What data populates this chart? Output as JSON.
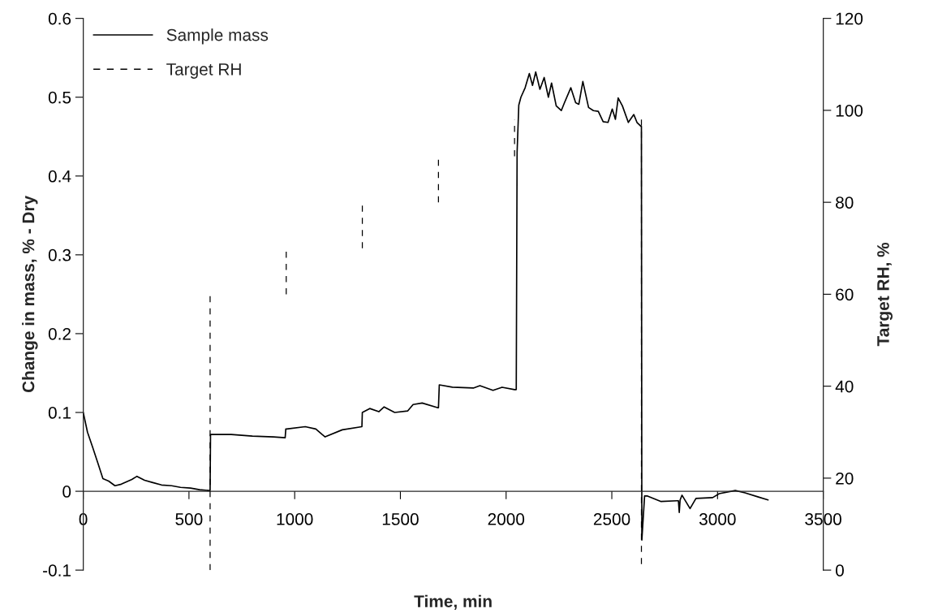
{
  "chart_data": {
    "type": "line",
    "xlabel": "Time, min",
    "ylabel": "Change in mass, % - Dry",
    "y2label": "Target RH, %",
    "xlim": [
      0,
      3500
    ],
    "xticks": [
      0,
      500,
      1000,
      1500,
      2000,
      2500,
      3000,
      3500
    ],
    "ylim": [
      -0.1,
      0.6
    ],
    "yticks": [
      -0.1,
      0,
      0.1,
      0.2,
      0.3,
      0.4,
      0.5,
      0.6
    ],
    "y2lim": [
      0,
      120
    ],
    "y2ticks": [
      0,
      20,
      40,
      60,
      80,
      100,
      120
    ],
    "grid": false,
    "legend": "top left",
    "marker": "none",
    "series": [
      {
        "name": "Sample mass",
        "color": "#000000",
        "line_style": "solid",
        "x": [
          0,
          20,
          43,
          70,
          93,
          120,
          150,
          180,
          204,
          230,
          254,
          290,
          329,
          370,
          418,
          460,
          507,
          550,
          593,
          600,
          602,
          700,
          800,
          900,
          955,
          958,
          962,
          1050,
          1100,
          1130,
          1144,
          1225,
          1318,
          1320,
          1355,
          1398,
          1423,
          1473,
          1535,
          1560,
          1603,
          1678,
          1680,
          1684,
          1746,
          1845,
          1876,
          1938,
          1981,
          2040,
          2048,
          2052,
          2060,
          2070,
          2090,
          2110,
          2125,
          2140,
          2160,
          2180,
          2200,
          2215,
          2237,
          2261,
          2276,
          2306,
          2329,
          2344,
          2363,
          2390,
          2413,
          2436,
          2459,
          2482,
          2502,
          2517,
          2530,
          2550,
          2578,
          2604,
          2619,
          2638,
          2640,
          2642,
          2655,
          2669,
          2733,
          2809,
          2815,
          2819,
          2823,
          2832,
          2870,
          2898,
          2977,
          3008,
          3084,
          3130,
          3190,
          3239
        ],
        "values": [
          0.1,
          0.075,
          0.057,
          0.035,
          0.016,
          0.013,
          0.007,
          0.009,
          0.012,
          0.015,
          0.019,
          0.014,
          0.011,
          0.008,
          0.007,
          0.005,
          0.004,
          0.002,
          0.001,
          0.001,
          0.072,
          0.072,
          0.07,
          0.069,
          0.068,
          0.079,
          0.079,
          0.082,
          0.079,
          0.072,
          0.069,
          0.078,
          0.082,
          0.1,
          0.105,
          0.101,
          0.107,
          0.1,
          0.102,
          0.11,
          0.112,
          0.106,
          0.106,
          0.135,
          0.132,
          0.131,
          0.134,
          0.128,
          0.132,
          0.129,
          0.129,
          0.43,
          0.49,
          0.5,
          0.512,
          0.53,
          0.515,
          0.532,
          0.51,
          0.525,
          0.5,
          0.518,
          0.489,
          0.483,
          0.493,
          0.512,
          0.493,
          0.491,
          0.52,
          0.487,
          0.483,
          0.482,
          0.469,
          0.468,
          0.485,
          0.472,
          0.499,
          0.489,
          0.468,
          0.478,
          0.468,
          0.463,
          0.463,
          -0.062,
          -0.006,
          -0.006,
          -0.013,
          -0.012,
          -0.012,
          -0.027,
          -0.011,
          -0.005,
          -0.022,
          -0.009,
          -0.008,
          -0.003,
          0.001,
          -0.002,
          -0.007,
          -0.011
        ]
      },
      {
        "name": "Target RH",
        "color": "#000000",
        "line_style": "dashed",
        "axis": "y2",
        "x": [
          600,
          600,
          null,
          960,
          960,
          null,
          1320,
          1320,
          null,
          1680,
          1680,
          null,
          2040,
          2040,
          null,
          2640,
          2640
        ],
        "values": [
          0,
          60,
          null,
          60,
          70,
          null,
          70,
          80,
          null,
          80,
          90,
          null,
          90,
          98,
          null,
          98,
          0
        ]
      }
    ]
  }
}
